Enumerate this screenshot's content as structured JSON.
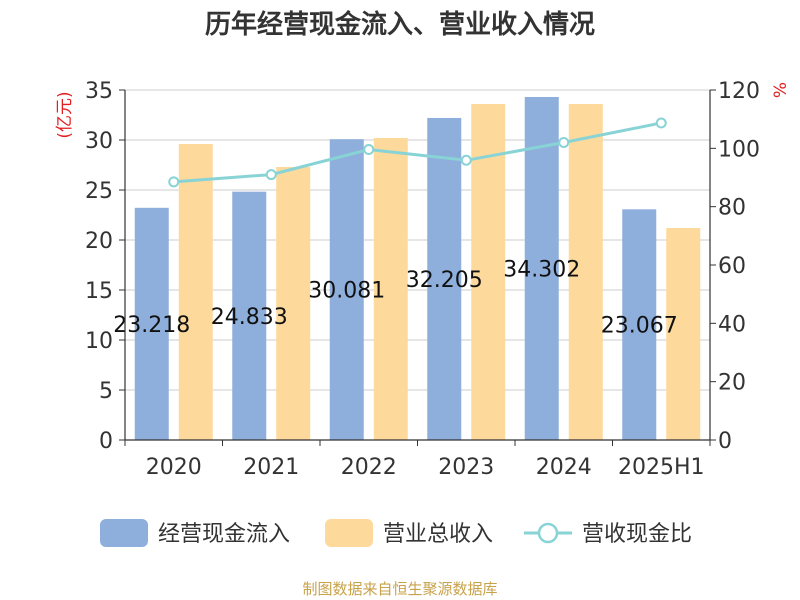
{
  "chart_data": {
    "type": "bar",
    "title": "历年经营现金流入、营业收入情况",
    "categories": [
      "2020",
      "2021",
      "2022",
      "2023",
      "2024",
      "2025H1"
    ],
    "series": [
      {
        "name": "经营现金流入",
        "kind": "bar",
        "axis": "left",
        "color": "#8eaedc",
        "values": [
          23.218,
          24.833,
          30.081,
          32.205,
          34.302,
          23.067
        ],
        "labels": [
          "23.218",
          "24.833",
          "30.081",
          "32.205",
          "34.302",
          "23.067"
        ]
      },
      {
        "name": "营业总收入",
        "kind": "bar",
        "axis": "left",
        "color": "#fdd99b",
        "values": [
          29.6,
          27.3,
          30.2,
          33.6,
          33.6,
          21.2
        ]
      },
      {
        "name": "营收现金比",
        "kind": "line",
        "axis": "right",
        "color": "#88d3d6",
        "values": [
          88.5,
          91.0,
          99.6,
          95.9,
          102.0,
          108.7
        ]
      }
    ],
    "y_left": {
      "label": "(亿元)",
      "ylim": [
        0,
        35
      ],
      "ticks": [
        0,
        5,
        10,
        15,
        20,
        25,
        30,
        35
      ]
    },
    "y_right": {
      "label": "%",
      "ylim": [
        0,
        120
      ],
      "ticks": [
        0,
        20,
        40,
        60,
        80,
        100,
        120
      ]
    },
    "grid": true,
    "legend_position": "bottom"
  },
  "source_note": "制图数据来自恒生聚源数据库"
}
